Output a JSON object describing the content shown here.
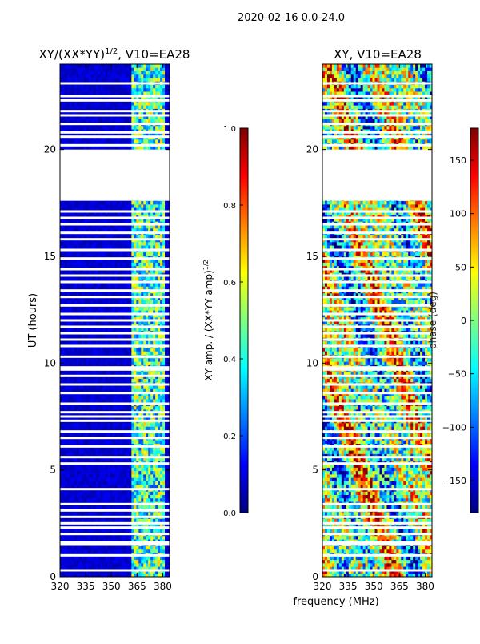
{
  "figure": {
    "suptitle": "2020-02-16 0.0-24.0",
    "xlabel": "frequency (MHz)"
  },
  "colormap": {
    "name": "jet",
    "stops": [
      "#00007f",
      "#0000ff",
      "#007fff",
      "#00ffff",
      "#7fff7f",
      "#ffff00",
      "#ff7f00",
      "#ff0000",
      "#7f0000"
    ]
  },
  "chart_data": [
    {
      "type": "heatmap",
      "title_main": "XY/(XX*YY)",
      "title_exp": "1/2",
      "title_tail": ", V10=EA28",
      "ylabel": "UT (hours)",
      "xlim": [
        320,
        384
      ],
      "ylim": [
        0,
        24
      ],
      "xticks": [
        320,
        335,
        350,
        365,
        380
      ],
      "yticks": [
        0,
        5,
        10,
        15,
        20
      ],
      "gap_hours": [
        [
          17.6,
          20.0
        ]
      ],
      "flag_hours": [
        0.3,
        1.0,
        1.5,
        1.6,
        2.0,
        2.3,
        2.5,
        2.8,
        3.1,
        3.4,
        4.1,
        5.3,
        5.6,
        6.1,
        6.5,
        6.8,
        7.3,
        7.5,
        7.7,
        8.1,
        8.6,
        9.0,
        9.4,
        9.7,
        9.8,
        10.3,
        10.8,
        11.1,
        11.4,
        11.7,
        12.0,
        12.3,
        12.7,
        13.1,
        13.4,
        13.8,
        14.1,
        14.4,
        14.9,
        15.3,
        15.8,
        16.1,
        16.5,
        16.8,
        17.1,
        20.2,
        20.6,
        20.8,
        21.2,
        21.6,
        21.8,
        22.3,
        22.5,
        23.1
      ],
      "description": "Normalized XY amplitude: mostly low (~0.05) below 362 MHz, elevated (0.2-0.7) in the 362-380 MHz band",
      "colorbar": {
        "label_main": "XY amp. / (XX*YY amp)",
        "label_exp": "1/2",
        "range": [
          0.0,
          1.0
        ],
        "ticks": [
          "0.0",
          "0.2",
          "0.4",
          "0.6",
          "0.8",
          "1.0"
        ]
      }
    },
    {
      "type": "heatmap",
      "title": "XY, V10=EA28",
      "xlim": [
        320,
        384
      ],
      "ylim": [
        0,
        24
      ],
      "xticks": [
        320,
        335,
        350,
        365,
        380
      ],
      "yticks": [
        0,
        5,
        10,
        15,
        20
      ],
      "gap_hours": [
        [
          17.6,
          20.0
        ]
      ],
      "flag_hours": [
        0.3,
        1.0,
        1.5,
        1.6,
        2.0,
        2.3,
        2.5,
        2.8,
        3.1,
        3.4,
        4.1,
        5.3,
        5.6,
        6.1,
        6.5,
        6.8,
        7.3,
        7.5,
        7.7,
        8.1,
        8.6,
        9.0,
        9.4,
        9.7,
        9.8,
        10.3,
        10.8,
        11.1,
        11.4,
        11.7,
        12.0,
        12.3,
        12.7,
        13.1,
        13.4,
        13.8,
        14.1,
        14.4,
        14.9,
        15.3,
        15.8,
        16.1,
        16.5,
        16.8,
        17.1,
        20.2,
        20.6,
        20.8,
        21.2,
        21.6,
        21.8,
        22.3,
        22.5,
        23.1
      ],
      "description": "XY phase in degrees, varying across the full range -180 to 180",
      "colorbar": {
        "label": "phase (deg)",
        "range": [
          -180,
          180
        ],
        "ticks": [
          "150",
          "100",
          "50",
          "0",
          "−50",
          "−100",
          "−150"
        ],
        "tick_values": [
          150,
          100,
          50,
          0,
          -50,
          -100,
          -150
        ]
      }
    }
  ]
}
